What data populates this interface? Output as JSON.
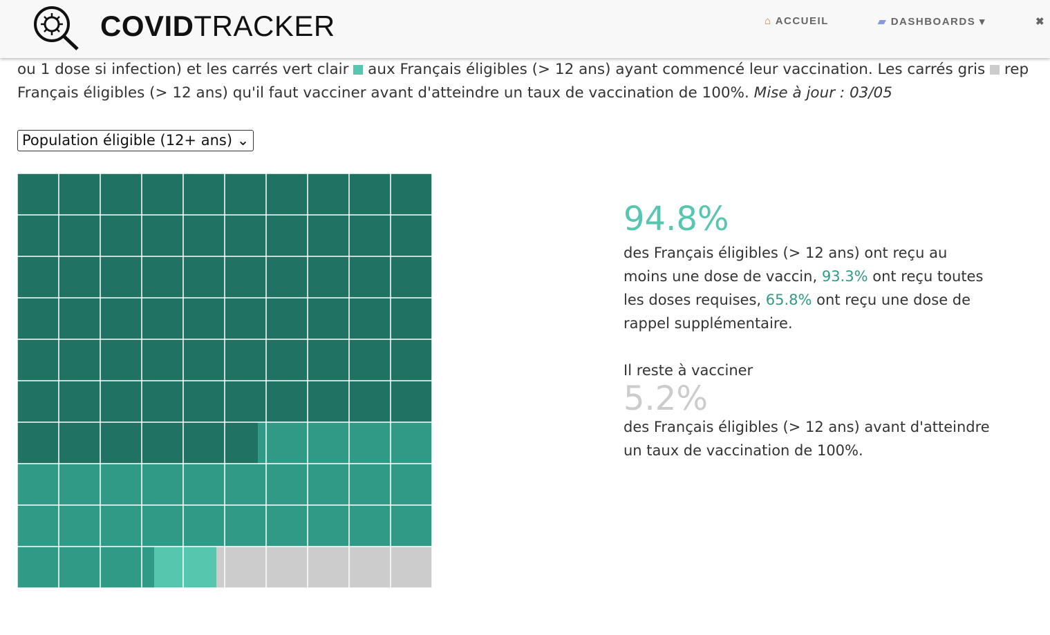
{
  "header": {
    "logo_bold": "COVID",
    "logo_light": "TRACKER",
    "nav": [
      "ACCUEIL",
      "DASHBOARDS"
    ]
  },
  "intro": {
    "line1": [
      "ou 1 dose si infection) et les carrés vert clair",
      "aux Français éligibles (> 12 ans) ayant commencé leur vaccination. Les carrés gris",
      "rep"
    ],
    "line2": "Français éligibles (> 12 ans) qu'il faut vacciner avant d'atteindre un taux de vaccination de 100%.",
    "update": "Mise à jour : 03/05"
  },
  "select": "Population éligible (12+ ans)",
  "stats": {
    "at_least_one": {
      "value": 94.8,
      "label": "94.8%",
      "color": "#57c6ae"
    },
    "text1": "des Français éligibles (> 12 ans) ont reçu au moins une dose de vaccin,",
    "fully": {
      "value": 93.3,
      "label": "93.3%",
      "color": "#319a87"
    },
    "text2": "ont reçu toutes les doses requises,",
    "booster": {
      "value": 65.8,
      "label": "65.8%",
      "color": "#207262"
    },
    "text3": "ont reçu une dose de rappel supplémentaire.",
    "remaining_intro": "Il reste à vacciner",
    "remaining": {
      "value": 5.2,
      "label": "5.2%",
      "color": "#cccccc"
    },
    "text4": "des Français éligibles (> 12 ans) avant d'atteindre un taux de vaccination de 100%."
  }
}
